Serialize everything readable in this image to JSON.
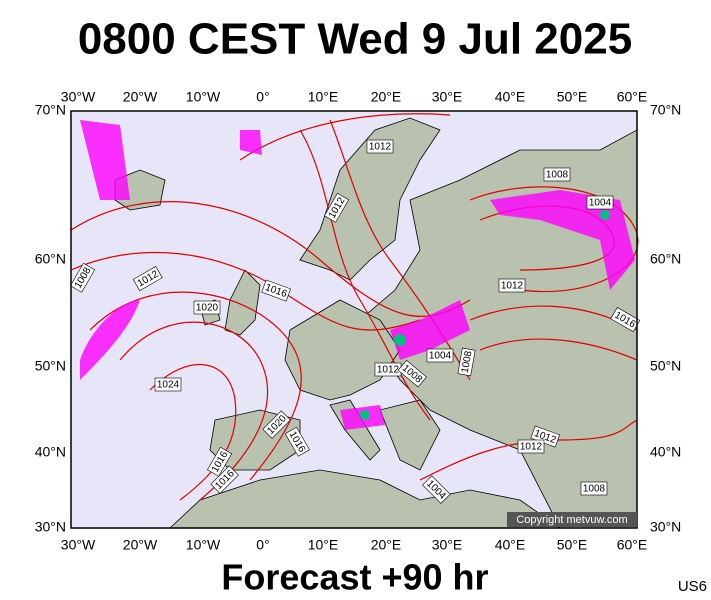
{
  "title": "0800 CEST Wed 9 Jul 2025",
  "footer": "Forecast +90 hr",
  "code": "US6",
  "copyright": "Copyright metvuw.com",
  "longitude_labels": [
    "30°W",
    "20°W",
    "10°W",
    "0°",
    "10°E",
    "20°E",
    "30°E",
    "40°E",
    "50°E",
    "60°E"
  ],
  "latitude_labels": [
    "70°N",
    "60°N",
    "50°N",
    "40°N",
    "30°N"
  ],
  "isobar_labels": [
    "1012",
    "1012",
    "1008",
    "1004",
    "1008",
    "1012",
    "1016",
    "1020",
    "1012",
    "1016",
    "1004",
    "1008",
    "1012",
    "1008",
    "1024",
    "1020",
    "1016",
    "1016",
    "1016",
    "1012",
    "1012",
    "1004",
    "1008"
  ]
}
